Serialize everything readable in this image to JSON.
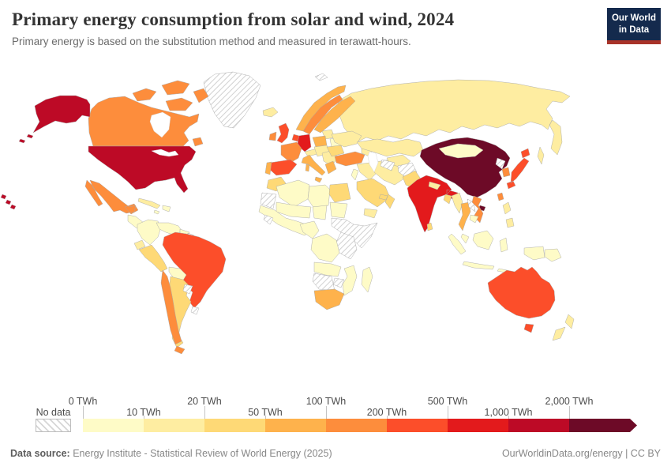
{
  "header": {
    "title": "Primary energy consumption from solar and wind, 2024",
    "subtitle": "Primary energy is based on the substitution method and measured in terawatt-hours.",
    "logo": {
      "line1": "Our World",
      "line2": "in Data"
    }
  },
  "chart_data": {
    "type": "choropleth_map",
    "title": "Primary energy consumption from solar and wind, 2024",
    "unit": "TWh",
    "legend": {
      "no_data_label": "No data",
      "no_data_pattern": "diagonal-hatch",
      "bins": [
        {
          "label": "0 TWh",
          "min": 0,
          "max": 10,
          "color": "#fefbc7"
        },
        {
          "label": "10 TWh",
          "min": 10,
          "max": 20,
          "color": "#feeda1"
        },
        {
          "label": "20 TWh",
          "min": 20,
          "max": 50,
          "color": "#fed976"
        },
        {
          "label": "50 TWh",
          "min": 50,
          "max": 100,
          "color": "#feb24c"
        },
        {
          "label": "100 TWh",
          "min": 100,
          "max": 200,
          "color": "#fd8d3c"
        },
        {
          "label": "200 TWh",
          "min": 200,
          "max": 500,
          "color": "#fc4e2a"
        },
        {
          "label": "500 TWh",
          "min": 500,
          "max": 1000,
          "color": "#e31a1c"
        },
        {
          "label": "1,000 TWh",
          "min": 1000,
          "max": 2000,
          "color": "#bd0a26"
        },
        {
          "label": "2,000 TWh",
          "min": 2000,
          "max": null,
          "color": "#6d0a27"
        }
      ]
    },
    "regions": [
      {
        "id": "greenland",
        "name": "Greenland",
        "no_data": true
      },
      {
        "id": "canada-arctic",
        "name": "Canada (Arctic islands)",
        "bin": 4
      },
      {
        "id": "canada",
        "name": "Canada",
        "bin": 4
      },
      {
        "id": "alaska",
        "name": "United States (Alaska)",
        "bin": 7
      },
      {
        "id": "usa",
        "name": "United States",
        "bin": 7
      },
      {
        "id": "hawaii",
        "name": "United States (Hawaii)",
        "bin": 7
      },
      {
        "id": "mexico",
        "name": "Mexico",
        "bin": 4
      },
      {
        "id": "central-america",
        "name": "Central America",
        "bin": 0
      },
      {
        "id": "cuba",
        "name": "Cuba",
        "bin": 1
      },
      {
        "id": "hispaniola",
        "name": "Dominican Republic / Haiti",
        "bin": 0
      },
      {
        "id": "colombia",
        "name": "Colombia",
        "bin": 0
      },
      {
        "id": "venezuela",
        "name": "Venezuela",
        "bin": 0
      },
      {
        "id": "guyana",
        "name": "Guyana",
        "bin": 0
      },
      {
        "id": "suriname",
        "name": "Suriname",
        "no_data": true
      },
      {
        "id": "ecuador",
        "name": "Ecuador",
        "bin": 1
      },
      {
        "id": "peru",
        "name": "Peru",
        "bin": 2
      },
      {
        "id": "brazil",
        "name": "Brazil",
        "bin": 5
      },
      {
        "id": "bolivia",
        "name": "Bolivia",
        "bin": 0
      },
      {
        "id": "argentina",
        "name": "Argentina",
        "bin": 2
      },
      {
        "id": "chile",
        "name": "Chile",
        "bin": 4
      },
      {
        "id": "paraguay",
        "name": "Paraguay",
        "no_data": true
      },
      {
        "id": "uruguay",
        "name": "Uruguay",
        "no_data": true
      },
      {
        "id": "iceland",
        "name": "Iceland",
        "bin": 1
      },
      {
        "id": "svalbard",
        "name": "Svalbard",
        "no_data": true
      },
      {
        "id": "russia",
        "name": "Russia",
        "bin": 1
      },
      {
        "id": "ireland",
        "name": "Ireland",
        "bin": 4
      },
      {
        "id": "uk",
        "name": "United Kingdom",
        "bin": 5
      },
      {
        "id": "norway",
        "name": "Norway",
        "bin": 3
      },
      {
        "id": "sweden",
        "name": "Sweden",
        "bin": 4
      },
      {
        "id": "finland",
        "name": "Finland",
        "bin": 3
      },
      {
        "id": "denmark",
        "name": "Denmark",
        "bin": 4
      },
      {
        "id": "baltics",
        "name": "Baltic states",
        "bin": 1
      },
      {
        "id": "poland",
        "name": "Poland",
        "bin": 3
      },
      {
        "id": "germany",
        "name": "Germany",
        "bin": 6
      },
      {
        "id": "netherlands",
        "name": "Netherlands",
        "bin": 5
      },
      {
        "id": "france",
        "name": "France",
        "bin": 4
      },
      {
        "id": "spain",
        "name": "Spain",
        "bin": 5
      },
      {
        "id": "portugal",
        "name": "Portugal",
        "bin": 3
      },
      {
        "id": "alpine",
        "name": "Switzerland / Austria",
        "bin": 1
      },
      {
        "id": "czech-hungary",
        "name": "Czechia / Hungary",
        "bin": 1
      },
      {
        "id": "italy",
        "name": "Italy",
        "bin": 3
      },
      {
        "id": "balkans",
        "name": "Balkans",
        "bin": 1
      },
      {
        "id": "romania",
        "name": "Romania / Bulgaria",
        "bin": 2
      },
      {
        "id": "ukraine",
        "name": "Ukraine",
        "bin": 1
      },
      {
        "id": "belarus",
        "name": "Belarus",
        "bin": 0
      },
      {
        "id": "greece",
        "name": "Greece",
        "bin": 3
      },
      {
        "id": "turkey",
        "name": "Turkey",
        "bin": 4
      },
      {
        "id": "caucasus",
        "name": "Caucasus",
        "bin": 1
      },
      {
        "id": "syria-iraq",
        "name": "Syria / Iraq",
        "bin": 1
      },
      {
        "id": "israel-jordan",
        "name": "Israel / Jordan",
        "bin": 0
      },
      {
        "id": "iran",
        "name": "Iran",
        "bin": 1
      },
      {
        "id": "saudi-arabia",
        "name": "Saudi Arabia",
        "bin": 2
      },
      {
        "id": "yemen",
        "name": "Yemen",
        "bin": 1
      },
      {
        "id": "oman",
        "name": "Oman",
        "bin": 2
      },
      {
        "id": "uae",
        "name": "United Arab Emirates",
        "bin": 2
      },
      {
        "id": "morocco",
        "name": "Morocco",
        "bin": 2
      },
      {
        "id": "algeria",
        "name": "Algeria",
        "bin": 0
      },
      {
        "id": "libya",
        "name": "Libya",
        "bin": 0
      },
      {
        "id": "egypt",
        "name": "Egypt",
        "bin": 2
      },
      {
        "id": "wsahara-mauritania",
        "name": "Western Sahara / Mauritania",
        "no_data": true
      },
      {
        "id": "mali-niger",
        "name": "Mali / Niger",
        "bin": 0
      },
      {
        "id": "chad-sudan",
        "name": "Chad / Sudan",
        "bin": 0
      },
      {
        "id": "west-africa",
        "name": "West Africa",
        "bin": 0
      },
      {
        "id": "guinea",
        "name": "Guinea",
        "no_data": true
      },
      {
        "id": "nigeria",
        "name": "Nigeria / Cameroon",
        "bin": 0
      },
      {
        "id": "ethiopia-somalia",
        "name": "Ethiopia / Somalia / South Sudan",
        "no_data": true
      },
      {
        "id": "kenya-tanzania",
        "name": "Kenya / Tanzania",
        "no_data": true
      },
      {
        "id": "drc",
        "name": "DR Congo / Central Africa",
        "bin": 0
      },
      {
        "id": "angola-zambia",
        "name": "Angola / Zambia",
        "bin": 0
      },
      {
        "id": "zimbabwe",
        "name": "Zimbabwe",
        "no_data": true
      },
      {
        "id": "mozambique",
        "name": "Mozambique",
        "bin": 0
      },
      {
        "id": "namibia-botswana",
        "name": "Namibia / Botswana",
        "no_data": true
      },
      {
        "id": "south-africa",
        "name": "South Africa",
        "bin": 3
      },
      {
        "id": "madagascar",
        "name": "Madagascar",
        "bin": 0
      },
      {
        "id": "kazakhstan",
        "name": "Kazakhstan",
        "bin": 1
      },
      {
        "id": "uzbekistan",
        "name": "Uzbekistan",
        "bin": 1
      },
      {
        "id": "turkmenistan",
        "name": "Turkmenistan",
        "no_data": true
      },
      {
        "id": "afghanistan",
        "name": "Afghanistan",
        "no_data": true
      },
      {
        "id": "pakistan",
        "name": "Pakistan",
        "bin": 2
      },
      {
        "id": "india",
        "name": "India",
        "bin": 6
      },
      {
        "id": "nepal",
        "name": "Nepal",
        "bin": 1
      },
      {
        "id": "bangladesh",
        "name": "Bangladesh",
        "bin": 2
      },
      {
        "id": "sri-lanka",
        "name": "Sri Lanka",
        "bin": 2
      },
      {
        "id": "china",
        "name": "China",
        "bin": 8
      },
      {
        "id": "hainan",
        "name": "China (Hainan)",
        "bin": 8
      },
      {
        "id": "mongolia",
        "name": "Mongolia",
        "bin": 0
      },
      {
        "id": "north-korea",
        "name": "North Korea",
        "no_data": true
      },
      {
        "id": "south-korea",
        "name": "South Korea",
        "bin": 4
      },
      {
        "id": "japan",
        "name": "Japan",
        "bin": 5
      },
      {
        "id": "taiwan",
        "name": "Taiwan",
        "bin": 4
      },
      {
        "id": "myanmar",
        "name": "Myanmar",
        "bin": 1
      },
      {
        "id": "thailand",
        "name": "Thailand",
        "bin": 3
      },
      {
        "id": "laos",
        "name": "Laos",
        "no_data": true
      },
      {
        "id": "vietnam",
        "name": "Vietnam",
        "bin": 4
      },
      {
        "id": "cambodia",
        "name": "Cambodia",
        "bin": 0
      },
      {
        "id": "malaysia",
        "name": "Malaysia",
        "bin": 0
      },
      {
        "id": "indonesia",
        "name": "Indonesia",
        "bin": 0
      },
      {
        "id": "philippines",
        "name": "Philippines",
        "bin": 1
      },
      {
        "id": "png",
        "name": "Papua New Guinea",
        "bin": 0
      },
      {
        "id": "australia",
        "name": "Australia",
        "bin": 5
      },
      {
        "id": "tasmania",
        "name": "Australia (Tasmania)",
        "bin": 5
      },
      {
        "id": "new-zealand",
        "name": "New Zealand",
        "bin": 1
      }
    ]
  },
  "footer": {
    "source_label": "Data source:",
    "source": "Energy Institute - Statistical Review of World Energy (2025)",
    "link": "OurWorldinData.org/energy",
    "separator": "|",
    "license": "CC BY"
  }
}
